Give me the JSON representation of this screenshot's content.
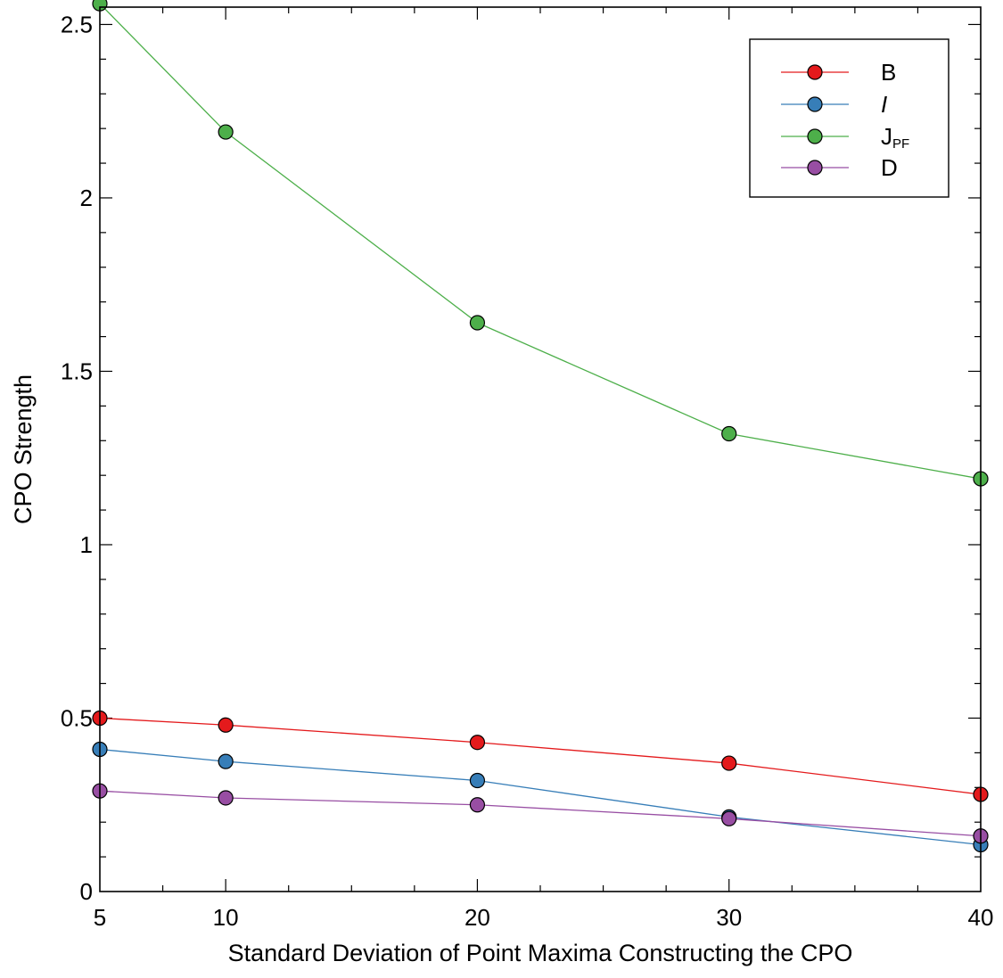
{
  "chart_data": {
    "type": "line",
    "title": "",
    "xlabel": "Standard Deviation of Point Maxima Constructing the CPO",
    "ylabel": "CPO Strength",
    "xlim": [
      5,
      40
    ],
    "ylim": [
      0,
      2.55
    ],
    "x_ticks": [
      5,
      10,
      20,
      30,
      40
    ],
    "x_tick_labels": [
      "5",
      "10",
      "20",
      "30",
      "40"
    ],
    "y_ticks": [
      0,
      0.5,
      1,
      1.5,
      2,
      2.5
    ],
    "y_tick_labels": [
      "0",
      "0.5",
      "1",
      "1.5",
      "2",
      "2.5"
    ],
    "grid": false,
    "legend_position": "top-right",
    "x": [
      5,
      10,
      20,
      30,
      40
    ],
    "series": [
      {
        "name": "B",
        "legend_main": "B",
        "legend_sub": "",
        "italic": false,
        "color": "#e41a1c",
        "values": [
          0.5,
          0.48,
          0.43,
          0.37,
          0.28
        ]
      },
      {
        "name": "I",
        "legend_main": "I",
        "legend_sub": "",
        "italic": true,
        "color": "#377eb8",
        "values": [
          0.41,
          0.375,
          0.32,
          0.215,
          0.135
        ]
      },
      {
        "name": "JPF",
        "legend_main": "J",
        "legend_sub": "PF",
        "italic": false,
        "color": "#4daf4a",
        "values": [
          2.56,
          2.19,
          1.64,
          1.32,
          1.19
        ]
      },
      {
        "name": "D",
        "legend_main": "D",
        "legend_sub": "",
        "italic": false,
        "color": "#984ea3",
        "values": [
          0.29,
          0.27,
          0.25,
          0.21,
          0.16
        ]
      }
    ]
  }
}
